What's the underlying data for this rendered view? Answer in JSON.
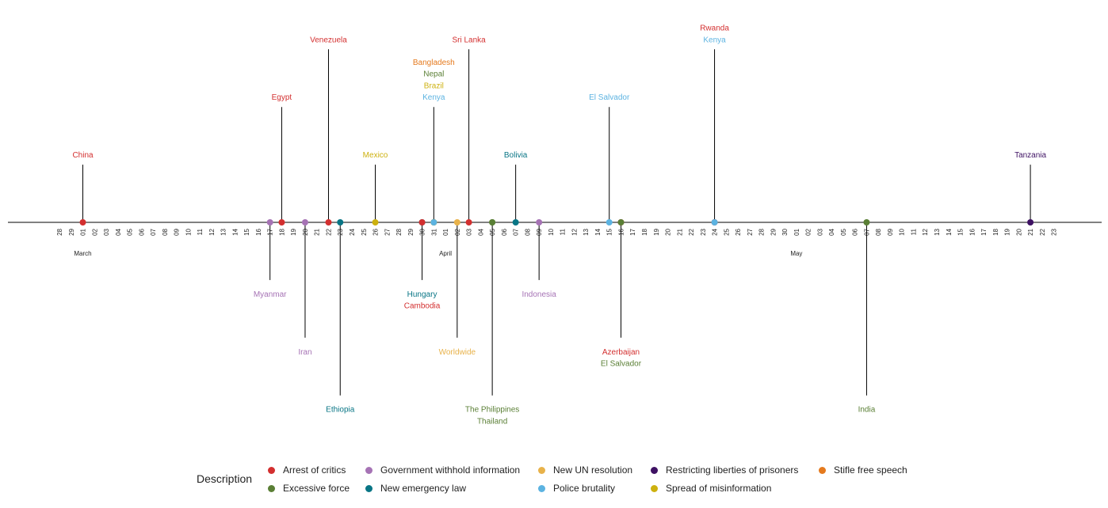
{
  "chart_data": {
    "type": "timeline",
    "title": "",
    "legend_title": "Description",
    "legend_position": "bottom",
    "colors": {
      "Arrest of critics": "#d32f2f",
      "Excessive force": "#5a7f35",
      "Government withhold information": "#a673b5",
      "New emergency law": "#087585",
      "New UN resolution": "#e8b24a",
      "Police brutality": "#5cb3e1",
      "Restricting liberties of prisoners": "#3e1163",
      "Spread of misinformation": "#cdb10f",
      "Stifle free speech": "#e57a1e"
    },
    "legend": [
      "Arrest of critics",
      "Excessive force",
      "Government withhold information",
      "New emergency law",
      "New UN resolution",
      "Police brutality",
      "Restricting liberties of prisoners",
      "Spread of misinformation",
      "Stifle free speech"
    ],
    "x_range": [
      "2020-02-28",
      "2020-05-23"
    ],
    "month_labels": [
      {
        "date": "2020-03-01",
        "label": "March"
      },
      {
        "date": "2020-04-01",
        "label": "April"
      },
      {
        "date": "2020-05-01",
        "label": "May"
      }
    ],
    "events": [
      {
        "date": "2020-03-01",
        "country": "China",
        "category": "Arrest of critics"
      },
      {
        "date": "2020-03-17",
        "country": "Myanmar",
        "category": "Government withhold information"
      },
      {
        "date": "2020-03-18",
        "country": "Egypt",
        "category": "Arrest of critics"
      },
      {
        "date": "2020-03-20",
        "country": "Iran",
        "category": "Government withhold information"
      },
      {
        "date": "2020-03-22",
        "country": "Venezuela",
        "category": "Arrest of critics"
      },
      {
        "date": "2020-03-23",
        "country": "Ethiopia",
        "category": "New emergency law"
      },
      {
        "date": "2020-03-26",
        "country": "Mexico",
        "category": "Spread of misinformation"
      },
      {
        "date": "2020-03-30",
        "country": "Hungary",
        "category": "New emergency law"
      },
      {
        "date": "2020-03-30",
        "country": "Cambodia",
        "category": "Arrest of critics"
      },
      {
        "date": "2020-03-31",
        "country": "Bangladesh",
        "category": "Stifle free speech"
      },
      {
        "date": "2020-03-31",
        "country": "Nepal",
        "category": "Excessive force"
      },
      {
        "date": "2020-03-31",
        "country": "Brazil",
        "category": "Spread of misinformation"
      },
      {
        "date": "2020-03-31",
        "country": "Kenya",
        "category": "Police brutality"
      },
      {
        "date": "2020-04-02",
        "country": "Worldwide",
        "category": "New UN resolution"
      },
      {
        "date": "2020-04-03",
        "country": "Sri Lanka",
        "category": "Arrest of critics"
      },
      {
        "date": "2020-04-05",
        "country": "The Philippines",
        "category": "Excessive force"
      },
      {
        "date": "2020-04-05",
        "country": "Thailand",
        "category": "Excessive force"
      },
      {
        "date": "2020-04-07",
        "country": "Bolivia",
        "category": "New emergency law"
      },
      {
        "date": "2020-04-09",
        "country": "Indonesia",
        "category": "Government withhold information"
      },
      {
        "date": "2020-04-15",
        "country": "El Salvador",
        "category": "Police brutality"
      },
      {
        "date": "2020-04-16",
        "country": "Azerbaijan",
        "category": "Arrest of critics"
      },
      {
        "date": "2020-04-16",
        "country": "El Salvador",
        "category": "Excessive force"
      },
      {
        "date": "2020-04-24",
        "country": "Rwanda",
        "category": "Arrest of critics"
      },
      {
        "date": "2020-04-24",
        "country": "Kenya",
        "category": "Police brutality"
      },
      {
        "date": "2020-05-07",
        "country": "India",
        "category": "Excessive force"
      },
      {
        "date": "2020-05-21",
        "country": "Tanzania",
        "category": "Restricting liberties of prisoners"
      }
    ],
    "event_groups": [
      {
        "date": "2020-03-01",
        "level": 3
      },
      {
        "date": "2020-03-17",
        "level": -3
      },
      {
        "date": "2020-03-18",
        "level": 6
      },
      {
        "date": "2020-03-20",
        "level": -6
      },
      {
        "date": "2020-03-22",
        "level": 9
      },
      {
        "date": "2020-03-23",
        "level": -9
      },
      {
        "date": "2020-03-26",
        "level": 3
      },
      {
        "date": "2020-03-30",
        "level": -3
      },
      {
        "date": "2020-03-31",
        "level": 6
      },
      {
        "date": "2020-04-02",
        "level": -6
      },
      {
        "date": "2020-04-03",
        "level": 9
      },
      {
        "date": "2020-04-05",
        "level": -9
      },
      {
        "date": "2020-04-07",
        "level": 3
      },
      {
        "date": "2020-04-09",
        "level": -3
      },
      {
        "date": "2020-04-15",
        "level": 6
      },
      {
        "date": "2020-04-16",
        "level": -6
      },
      {
        "date": "2020-04-24",
        "level": 9
      },
      {
        "date": "2020-05-07",
        "level": -9
      },
      {
        "date": "2020-05-21",
        "level": 3
      }
    ]
  }
}
